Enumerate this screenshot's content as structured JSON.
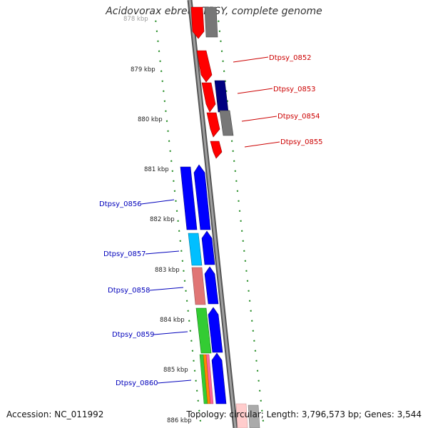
{
  "title": "Acidovorax ebreus TPSY, complete genome",
  "footer": {
    "accession": "Accession: NC_011992",
    "summary": "Topology: circular; Length: 3,796,573 bp; Genes: 3,544"
  },
  "ruler": {
    "top_partial_label": "878 kbp",
    "ticks": [
      "879 kbp",
      "880 kbp",
      "881 kbp",
      "882 kbp",
      "883 kbp",
      "884 kbp",
      "885 kbp",
      "886 kbp"
    ]
  },
  "colors": {
    "backbone": "#888888",
    "tick": "#228b22",
    "forward_label": "#cc0000",
    "reverse_label": "#0000bb",
    "red": "#ff0000",
    "dark_red": "#cc0000",
    "grey": "#777777",
    "navy": "#000080",
    "blue": "#0000ff",
    "cyan": "#00bfff",
    "salmon": "#e07575",
    "green": "#33cc33",
    "orange": "#ff8800",
    "pink": "#ff6699"
  },
  "genes_forward": [
    {
      "id": "Dtpsy_0852"
    },
    {
      "id": "Dtpsy_0853"
    },
    {
      "id": "Dtpsy_0854"
    },
    {
      "id": "Dtpsy_0855"
    }
  ],
  "genes_reverse": [
    {
      "id": "Dtpsy_0856"
    },
    {
      "id": "Dtpsy_0857"
    },
    {
      "id": "Dtpsy_0858"
    },
    {
      "id": "Dtpsy_0859"
    },
    {
      "id": "Dtpsy_0860"
    }
  ]
}
